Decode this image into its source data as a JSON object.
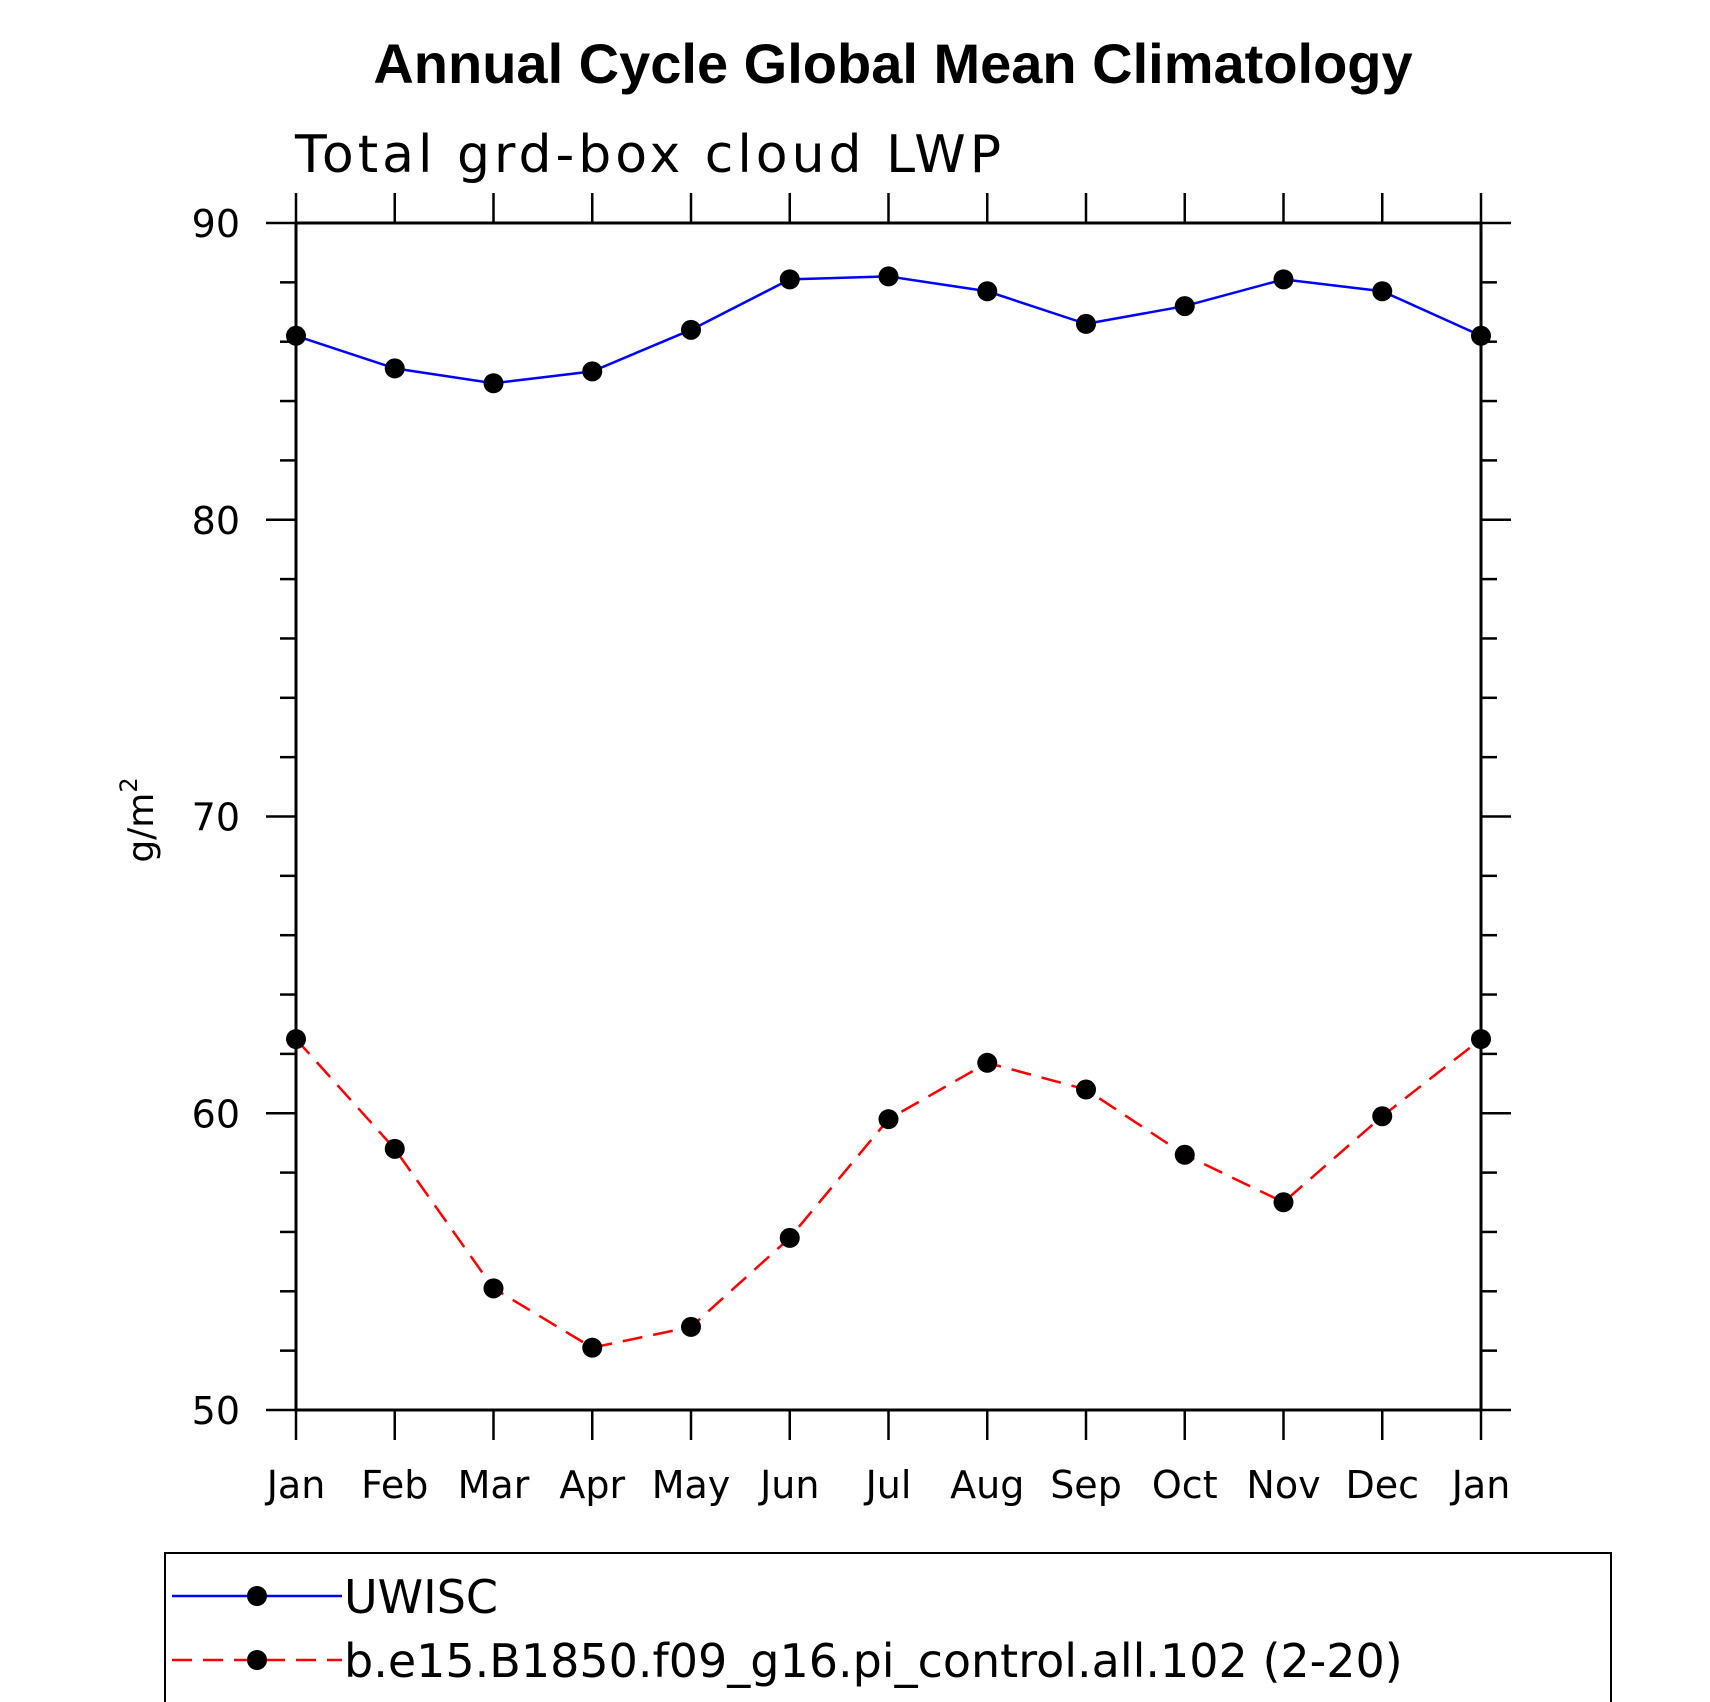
{
  "chart_data": {
    "type": "line",
    "title": "Annual Cycle Global Mean Climatology",
    "subtitle": "Total grd-box cloud LWP",
    "xlabel": "",
    "ylabel": "g/m",
    "ylabel_superscript": "2",
    "categories": [
      "Jan",
      "Feb",
      "Mar",
      "Apr",
      "May",
      "Jun",
      "Jul",
      "Aug",
      "Sep",
      "Oct",
      "Nov",
      "Dec",
      "Jan"
    ],
    "ylim": [
      50,
      90
    ],
    "yticks": [
      "50",
      "60",
      "70",
      "80",
      "90"
    ],
    "yticks_values": [
      50,
      60,
      70,
      80,
      90
    ],
    "grid": false,
    "legend_position": "bottom",
    "series": [
      {
        "name": "UWISC",
        "color": "#0000ff",
        "dash": "solid",
        "values": [
          86.2,
          85.1,
          84.6,
          85.0,
          86.4,
          88.1,
          88.2,
          87.7,
          86.6,
          87.2,
          88.1,
          87.7,
          86.2
        ]
      },
      {
        "name": "b.e15.B1850.f09_g16.pi_control.all.102 (2-20)",
        "color": "#ff0000",
        "dash": "dashed",
        "values": [
          62.5,
          58.8,
          54.1,
          52.1,
          52.8,
          55.8,
          59.8,
          61.7,
          60.8,
          58.6,
          57.0,
          59.9,
          62.5
        ]
      }
    ]
  }
}
